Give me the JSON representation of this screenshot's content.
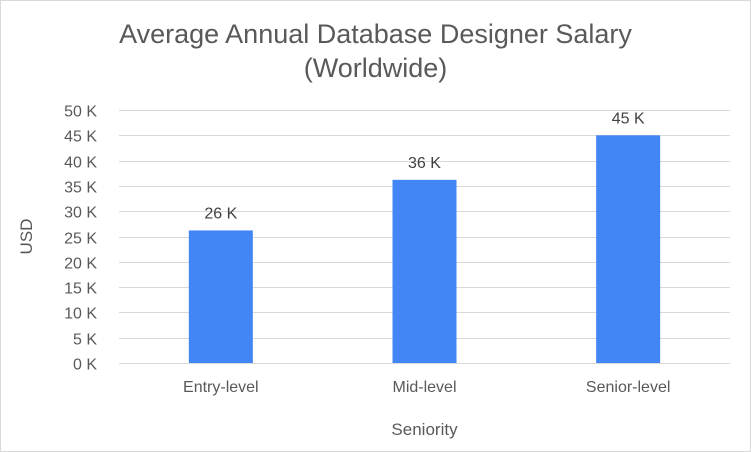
{
  "chart_data": {
    "type": "bar",
    "title_line1": "Average Annual Database Designer Salary",
    "title_line2": "(Worldwide)",
    "xlabel": "Seniority",
    "ylabel": "USD",
    "categories": [
      "Entry-level",
      "Mid-level",
      "Senior-level"
    ],
    "values": [
      26200,
      36200,
      45000
    ],
    "data_labels": [
      "26 K",
      "36 K",
      "45 K"
    ],
    "ylim": [
      0,
      50000
    ],
    "yticks": [
      0,
      5000,
      10000,
      15000,
      20000,
      25000,
      30000,
      35000,
      40000,
      45000,
      50000
    ],
    "ytick_labels": [
      "0 K",
      "5 K",
      "10 K",
      "15 K",
      "20 K",
      "25 K",
      "30 K",
      "35 K",
      "40 K",
      "45 K",
      "50 K"
    ],
    "grid": true,
    "legend": "none",
    "bar_color": "#4285f4"
  }
}
